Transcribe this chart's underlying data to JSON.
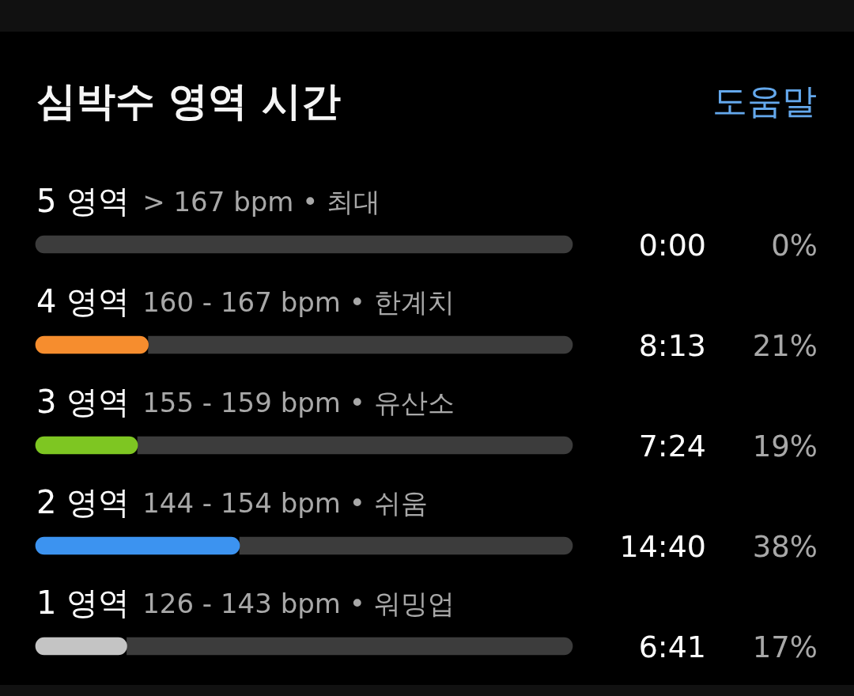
{
  "chart_data": {
    "type": "bar",
    "orientation": "horizontal",
    "stacked": true,
    "title": "심박수 영역 시간",
    "categories": [
      "5 영역",
      "4 영역",
      "3 영역",
      "2 영역",
      "1 영역"
    ],
    "series": [
      {
        "values": [
          0,
          21,
          19,
          38,
          17
        ],
        "colors": [
          null,
          "#f68d2e",
          "#7ec622",
          "#3c93f0",
          "#c4c4c4"
        ],
        "value_labels": [
          "0%",
          "21%",
          "19%",
          "38%",
          "17%"
        ]
      },
      {
        "values": [
          100,
          79,
          81,
          62,
          83
        ],
        "color": "#3c3c3c"
      }
    ],
    "xlim": [
      0,
      100
    ],
    "tick_labels": "y",
    "annotations": [
      "도움말",
      "> 167 bpm • 최대",
      "160 - 167 bpm • 한계치",
      "155 - 159 bpm • 유산소",
      "144 - 154 bpm • 쉬움",
      "126 - 143 bpm • 워밍업",
      "0:00",
      "8:13",
      "7:24",
      "14:40",
      "6:41"
    ]
  }
}
